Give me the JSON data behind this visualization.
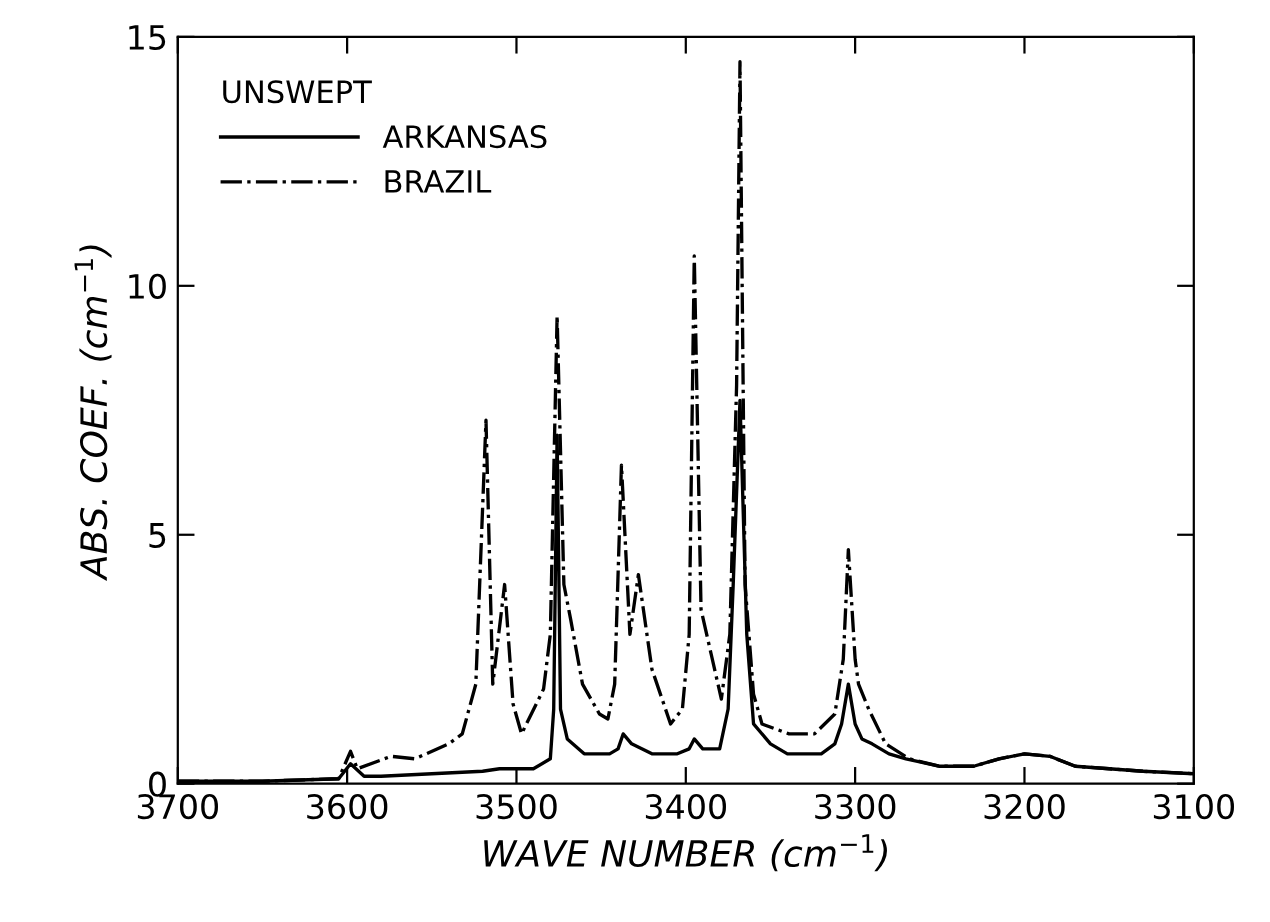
{
  "chart_data": {
    "type": "line",
    "xlabel": "WAVE NUMBER (cm$^{−1}$)",
    "ylabel": "ABS. COEF. (cm$^{−1}$)",
    "legend_title": "UNSWEPT",
    "xlim": [
      3700,
      3100
    ],
    "xticks": [
      3700,
      3600,
      3500,
      3400,
      3300,
      3200,
      3100
    ],
    "ylim": [
      0,
      15
    ],
    "yticks": [
      0,
      5,
      10,
      15
    ],
    "grid": false,
    "legend": "top left",
    "series": [
      {
        "name": "ARKANSAS",
        "color": "#000000",
        "line_style": "solid",
        "x": [
          3700,
          3650,
          3605,
          3598,
          3590,
          3580,
          3550,
          3520,
          3510,
          3490,
          3480,
          3478,
          3476,
          3474,
          3470,
          3460,
          3445,
          3440,
          3437,
          3432,
          3420,
          3405,
          3398,
          3395,
          3390,
          3380,
          3375,
          3372,
          3368,
          3364,
          3360,
          3350,
          3340,
          3320,
          3312,
          3308,
          3304,
          3300,
          3296,
          3290,
          3280,
          3270,
          3250,
          3230,
          3215,
          3200,
          3185,
          3170,
          3150,
          3130,
          3100
        ],
        "values": [
          0.05,
          0.05,
          0.1,
          0.4,
          0.15,
          0.15,
          0.2,
          0.25,
          0.3,
          0.3,
          0.5,
          1.5,
          7.0,
          1.5,
          0.9,
          0.6,
          0.6,
          0.7,
          1.0,
          0.8,
          0.6,
          0.6,
          0.7,
          0.9,
          0.7,
          0.7,
          1.5,
          4.0,
          7.7,
          3.0,
          1.2,
          0.8,
          0.6,
          0.6,
          0.8,
          1.2,
          2.0,
          1.2,
          0.9,
          0.8,
          0.6,
          0.5,
          0.35,
          0.35,
          0.5,
          0.6,
          0.55,
          0.35,
          0.3,
          0.25,
          0.2
        ]
      },
      {
        "name": "BRAZIL",
        "color": "#000000",
        "line_style": "dashdot",
        "x": [
          3700,
          3650,
          3605,
          3598,
          3594,
          3574,
          3560,
          3540,
          3532,
          3524,
          3518,
          3514,
          3507,
          3502,
          3497,
          3484,
          3480,
          3476,
          3472,
          3468,
          3461,
          3451,
          3446,
          3442,
          3438,
          3433,
          3428,
          3420,
          3409,
          3402,
          3398,
          3395,
          3391,
          3385,
          3379,
          3374,
          3370,
          3368,
          3365,
          3360,
          3355,
          3339,
          3324,
          3312,
          3307,
          3304,
          3300,
          3298,
          3292,
          3282,
          3268,
          3250,
          3230,
          3215,
          3200,
          3185,
          3170,
          3150,
          3130,
          3100
        ],
        "values": [
          0.05,
          0.05,
          0.1,
          0.65,
          0.3,
          0.55,
          0.5,
          0.8,
          1.0,
          2.0,
          7.3,
          2.0,
          4.0,
          1.6,
          1.0,
          1.9,
          3.0,
          9.4,
          4.0,
          3.3,
          2.0,
          1.4,
          1.3,
          2.0,
          6.4,
          3.0,
          4.2,
          2.3,
          1.2,
          1.5,
          3.0,
          10.6,
          3.5,
          2.6,
          1.7,
          3.0,
          8.0,
          14.5,
          4.0,
          1.8,
          1.2,
          1.0,
          1.0,
          1.4,
          2.5,
          4.7,
          2.5,
          2.0,
          1.5,
          0.8,
          0.5,
          0.35,
          0.35,
          0.5,
          0.6,
          0.55,
          0.35,
          0.3,
          0.25,
          0.2
        ]
      }
    ]
  }
}
